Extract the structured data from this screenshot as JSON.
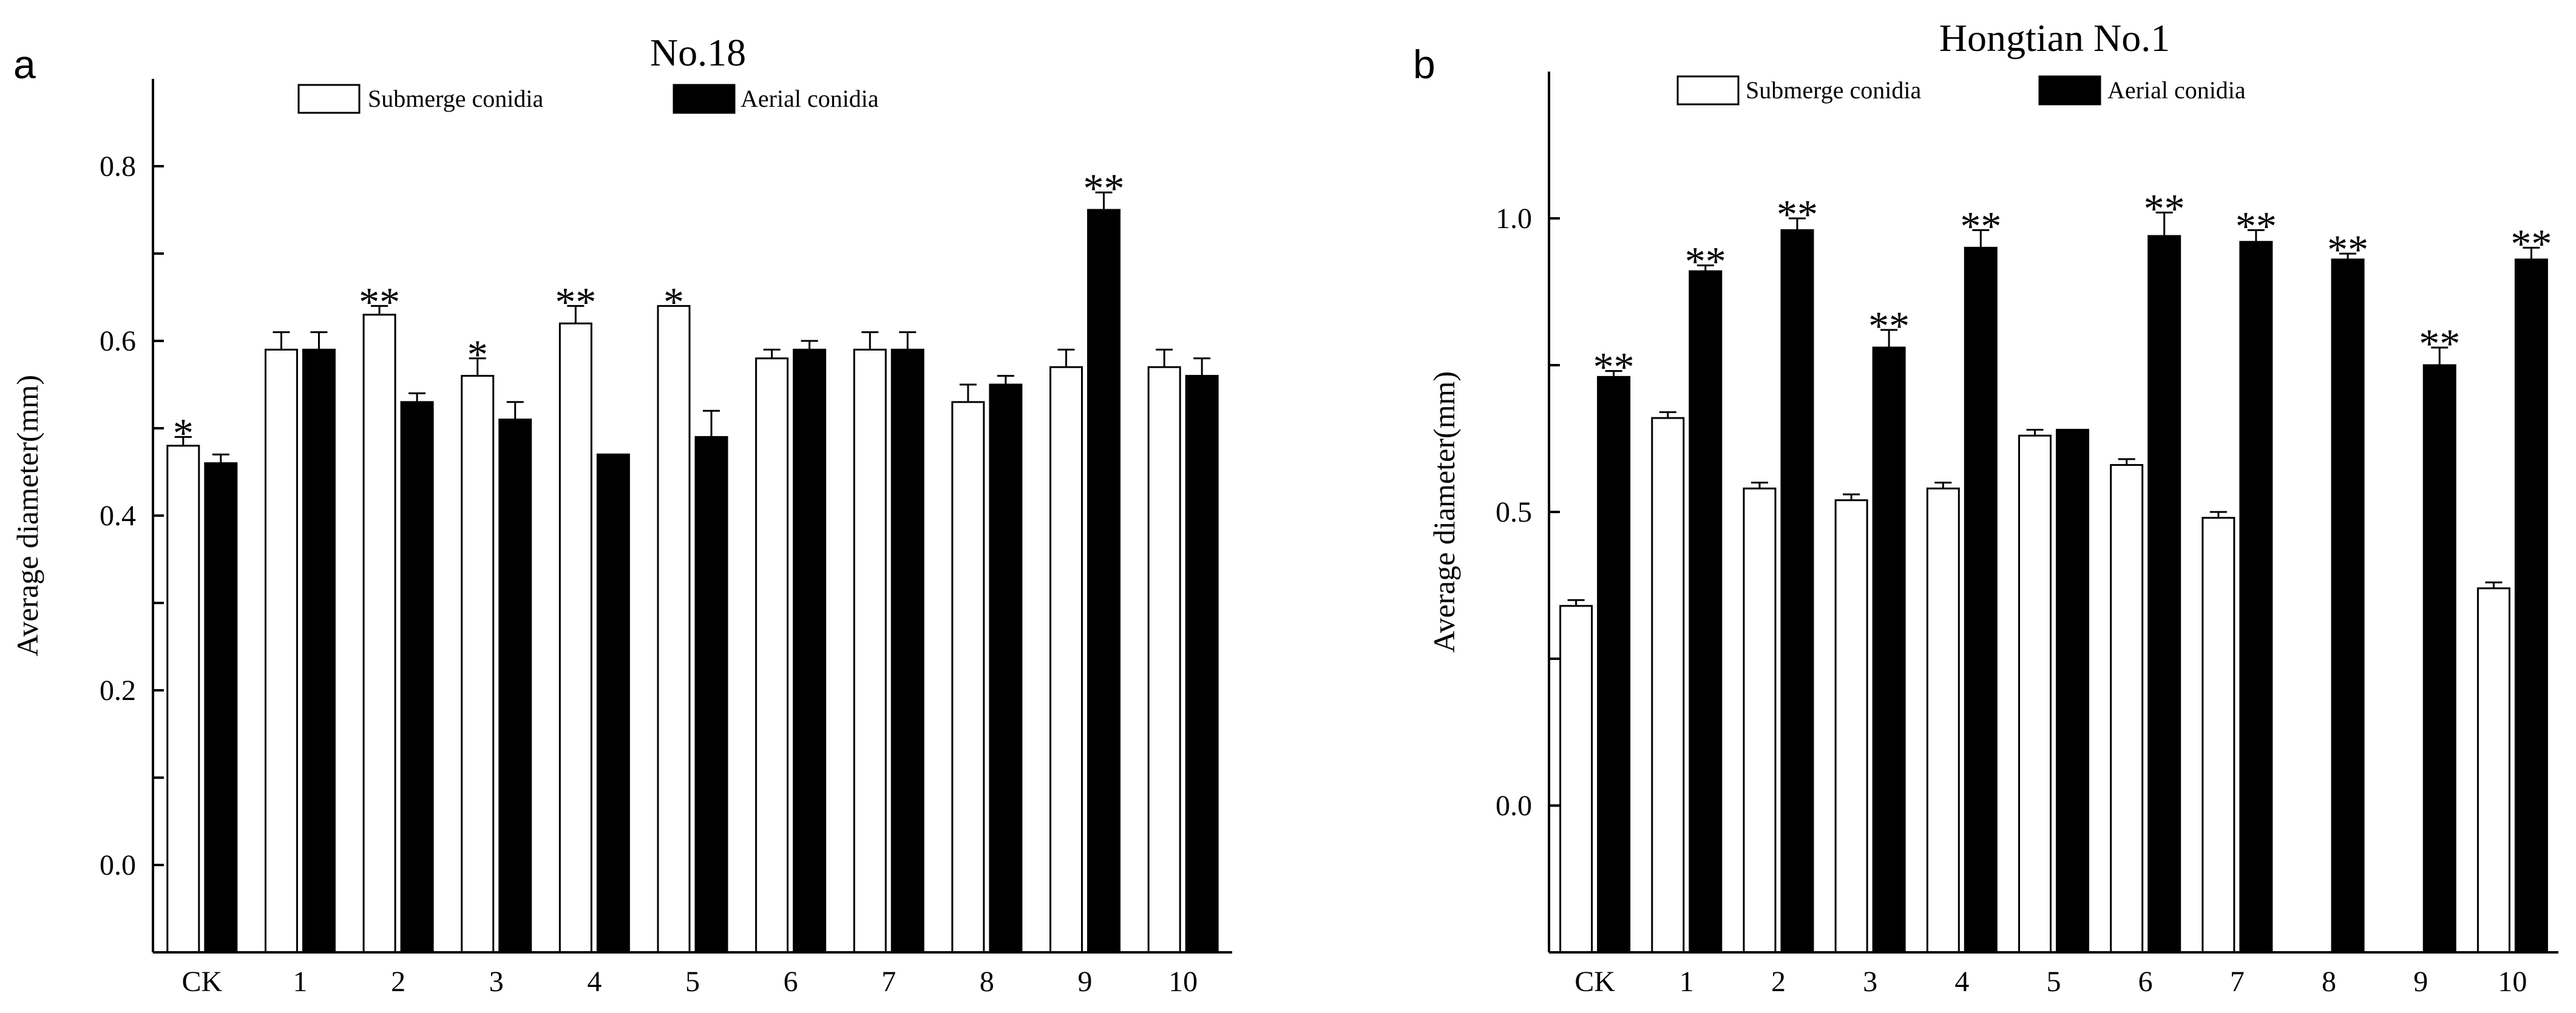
{
  "panel_letters": {
    "a": "a",
    "b": "b"
  },
  "legend": {
    "submerge": "Submerge conidia",
    "aerial": "Aerial conidia"
  },
  "colors": {
    "submerge_fill": "#ffffff",
    "aerial_fill": "#000000",
    "axis": "#000000"
  },
  "chart_data": [
    {
      "type": "bar",
      "title": "No.18",
      "ylabel": "Average diameter(mm)",
      "xlabel": "",
      "ylim": [
        -0.1,
        0.9
      ],
      "yticks": [
        0.0,
        0.2,
        0.4,
        0.6,
        0.8
      ],
      "ytick_labels": [
        "0.0",
        "0.2",
        "0.4",
        "0.6",
        "0.8"
      ],
      "categories": [
        "CK",
        "1",
        "2",
        "3",
        "4",
        "5",
        "6",
        "7",
        "8",
        "9",
        "10"
      ],
      "series": [
        {
          "name": "Submerge conidia",
          "values": [
            0.48,
            0.59,
            0.63,
            0.56,
            0.62,
            0.64,
            0.58,
            0.59,
            0.53,
            0.57,
            0.57
          ],
          "errors": [
            0.01,
            0.02,
            0.01,
            0.02,
            0.02,
            0.0,
            0.01,
            0.02,
            0.02,
            0.02,
            0.02
          ],
          "annotations": [
            "*",
            "",
            "**",
            "*",
            "**",
            "*",
            "",
            "",
            "",
            "",
            ""
          ]
        },
        {
          "name": "Aerial conidia",
          "values": [
            0.46,
            0.59,
            0.53,
            0.51,
            0.47,
            0.49,
            0.59,
            0.59,
            0.55,
            0.75,
            0.56
          ],
          "errors": [
            0.01,
            0.02,
            0.01,
            0.02,
            0.0,
            0.03,
            0.01,
            0.02,
            0.01,
            0.02,
            0.02
          ],
          "annotations": [
            "",
            "",
            "",
            "",
            "",
            "",
            "",
            "",
            "",
            "**",
            ""
          ]
        }
      ]
    },
    {
      "type": "bar",
      "title": "Hongtian No.1",
      "ylabel": "Average diameter(mm)",
      "xlabel": "",
      "ylim": [
        -0.25,
        1.25
      ],
      "yticks": [
        0.0,
        0.5,
        1.0
      ],
      "ytick_labels": [
        "0.0",
        "0.5",
        "1.0"
      ],
      "categories": [
        "CK",
        "1",
        "2",
        "3",
        "4",
        "5",
        "6",
        "7",
        "8",
        "9",
        "10"
      ],
      "series": [
        {
          "name": "Submerge conidia",
          "values": [
            0.34,
            0.66,
            0.54,
            0.52,
            0.54,
            0.63,
            0.58,
            0.49,
            null,
            null,
            0.37
          ],
          "errors": [
            0.01,
            0.01,
            0.01,
            0.01,
            0.01,
            0.01,
            0.01,
            0.01,
            0.0,
            0.0,
            0.01
          ],
          "annotations": [
            "",
            "",
            "",
            "",
            "",
            "",
            "",
            "",
            "",
            "",
            ""
          ]
        },
        {
          "name": "Aerial conidia",
          "values": [
            0.73,
            0.91,
            0.98,
            0.78,
            0.95,
            0.64,
            0.97,
            0.96,
            0.93,
            0.75,
            0.93
          ],
          "errors": [
            0.01,
            0.01,
            0.02,
            0.03,
            0.03,
            0.0,
            0.04,
            0.02,
            0.01,
            0.03,
            0.02
          ],
          "annotations": [
            "**",
            "**",
            "**",
            "**",
            "**",
            "",
            "**",
            "**",
            "**",
            "**",
            "**"
          ]
        }
      ]
    }
  ]
}
